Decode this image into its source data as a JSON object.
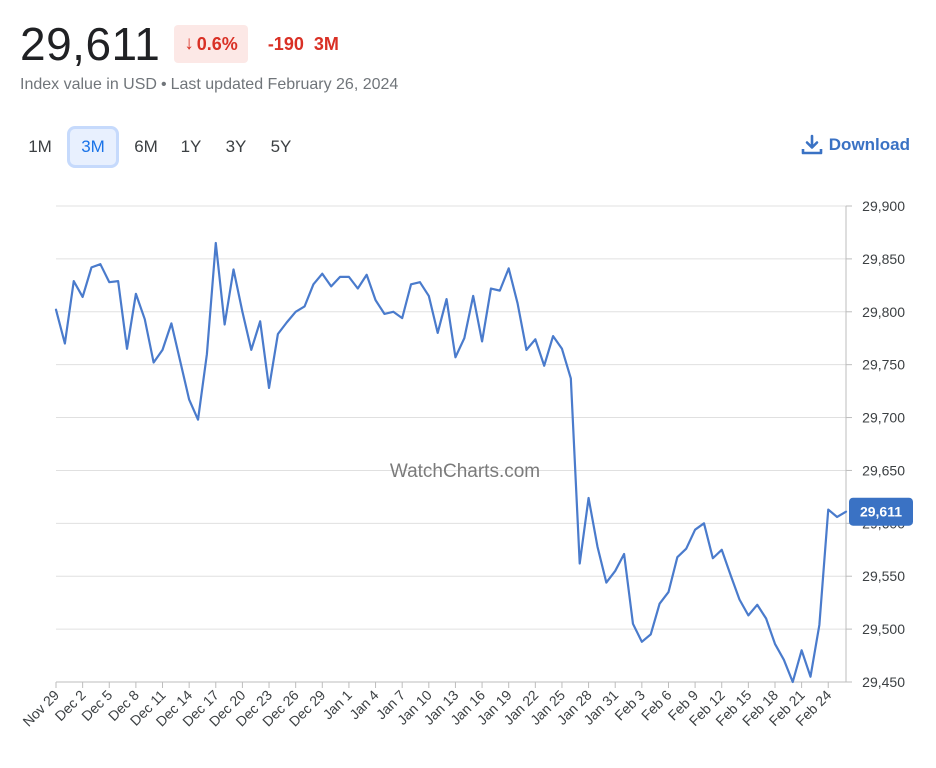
{
  "header": {
    "value": "29,611",
    "change_percent": "0.6%",
    "change_direction_icon": "arrow-down-icon",
    "change_abs": "-190",
    "period": "3M",
    "subtitle_value_desc": "Index value in USD",
    "subtitle_separator": "•",
    "subtitle_updated": "Last updated February 26, 2024"
  },
  "ranges": {
    "items": [
      {
        "label": "1M"
      },
      {
        "label": "3M",
        "active": true
      },
      {
        "label": "6M"
      },
      {
        "label": "1Y"
      },
      {
        "label": "3Y"
      },
      {
        "label": "5Y"
      }
    ]
  },
  "download": {
    "label": "Download",
    "icon": "download-icon"
  },
  "colors": {
    "line": "#4a7bcc",
    "negative": "#d93025",
    "negative_bg": "#fce8e6",
    "accent": "#3a72c4",
    "grid": "#e0e0e0"
  },
  "chart_data": {
    "type": "line",
    "watermark": "WatchCharts.com",
    "ylim": [
      29450,
      29900
    ],
    "y_ticks": [
      "29,900",
      "29,850",
      "29,800",
      "29,750",
      "29,700",
      "29,650",
      "29,600",
      "29,550",
      "29,500",
      "29,450"
    ],
    "x_labels": [
      "Nov 29",
      "Dec 2",
      "Dec 5",
      "Dec 8",
      "Dec 11",
      "Dec 14",
      "Dec 17",
      "Dec 20",
      "Dec 23",
      "Dec 26",
      "Dec 29",
      "Jan 1",
      "Jan 4",
      "Jan 7",
      "Jan 10",
      "Jan 13",
      "Jan 16",
      "Jan 19",
      "Jan 22",
      "Jan 25",
      "Jan 28",
      "Jan 31",
      "Feb 3",
      "Feb 6",
      "Feb 9",
      "Feb 12",
      "Feb 15",
      "Feb 18",
      "Feb 21",
      "Feb 24"
    ],
    "grid": true,
    "last_value_label": "29,611",
    "series": [
      {
        "values": [
          29802,
          29770,
          29829,
          29814,
          29842,
          29845,
          29828,
          29829,
          29765,
          29817,
          29793,
          29752,
          29764,
          29789,
          29753,
          29717,
          29698,
          29760,
          29865,
          29788,
          29840,
          29800,
          29764,
          29791,
          29728,
          29779,
          29790,
          29800,
          29805,
          29826,
          29836,
          29824,
          29833,
          29833,
          29822,
          29835,
          29811,
          29798,
          29800,
          29794,
          29826,
          29828,
          29815,
          29780,
          29812,
          29757,
          29775,
          29815,
          29772,
          29822,
          29820,
          29841,
          29808,
          29764,
          29774,
          29749,
          29777,
          29765,
          29737,
          29562,
          29624,
          29578,
          29544,
          29555,
          29571,
          29505,
          29488,
          29495,
          29524,
          29535,
          29568,
          29576,
          29594,
          29600,
          29567,
          29575,
          29551,
          29528,
          29513,
          29523,
          29510,
          29486,
          29471,
          29450,
          29480,
          29455,
          29504,
          29613,
          29606,
          29611
        ]
      }
    ]
  }
}
